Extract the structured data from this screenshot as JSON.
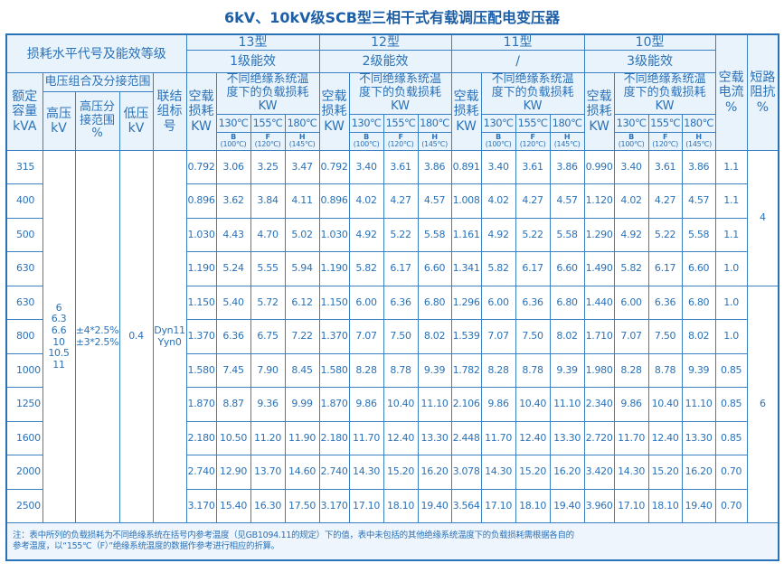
{
  "title": "6kV、10kV级SCB型三相干式有载调压配电变压器",
  "header": {
    "loss_level": "损耗水平代号及能效等级",
    "groups": [
      {
        "type": "13型",
        "grade": "1级能效"
      },
      {
        "type": "12型",
        "grade": "2级能效"
      },
      {
        "type": "11型",
        "grade": "/"
      },
      {
        "type": "10型",
        "grade": "3级能效"
      }
    ],
    "no_load_current": "空载电流%",
    "short_circuit_impedance": "短路阻抗%",
    "rated_capacity": "额定容量kVA",
    "voltage_combo": "电压组合及分接范围",
    "hv": "高压kV",
    "tap_range": "高压分接范围%",
    "lv": "低压kV",
    "vector_group": "联结组标号",
    "no_load_loss": "空载损耗KW",
    "load_loss": "不同绝缘系统温度下的负载损耗KW",
    "temps": [
      {
        "t": "130℃",
        "cls": "B",
        "ref": "(100℃)"
      },
      {
        "t": "155℃",
        "cls": "F",
        "ref": "(120℃)"
      },
      {
        "t": "180℃",
        "cls": "H",
        "ref": "(145℃)"
      }
    ]
  },
  "merged": {
    "hv_values": "6\n6.3\n6.6\n10\n10.5\n11",
    "tap_values": "±4*2.5%\n±3*2.5%",
    "lv_value": "0.4",
    "vector_values": "Dyn11\nYyn0",
    "impedance": [
      {
        "value": "4",
        "rows": 4
      },
      {
        "value": "6",
        "rows": 7
      }
    ]
  },
  "rows": [
    {
      "cap": "315",
      "g": [
        [
          "0.792",
          "3.06",
          "3.25",
          "3.47"
        ],
        [
          "0.792",
          "3.40",
          "3.61",
          "3.86"
        ],
        [
          "0.891",
          "3.40",
          "3.61",
          "3.86"
        ],
        [
          "0.990",
          "3.40",
          "3.61",
          "3.86"
        ]
      ],
      "i0": "1.1"
    },
    {
      "cap": "400",
      "g": [
        [
          "0.896",
          "3.62",
          "3.84",
          "4.11"
        ],
        [
          "0.896",
          "4.02",
          "4.27",
          "4.57"
        ],
        [
          "1.008",
          "4.02",
          "4.27",
          "4.57"
        ],
        [
          "1.120",
          "4.02",
          "4.27",
          "4.57"
        ]
      ],
      "i0": "1.1"
    },
    {
      "cap": "500",
      "g": [
        [
          "1.030",
          "4.43",
          "4.70",
          "5.02"
        ],
        [
          "1.030",
          "4.92",
          "5.22",
          "5.58"
        ],
        [
          "1.161",
          "4.92",
          "5.22",
          "5.58"
        ],
        [
          "1.290",
          "4.92",
          "5.22",
          "5.58"
        ]
      ],
      "i0": "1.1"
    },
    {
      "cap": "630",
      "g": [
        [
          "1.190",
          "5.24",
          "5.55",
          "5.94"
        ],
        [
          "1.190",
          "5.82",
          "6.17",
          "6.60"
        ],
        [
          "1.341",
          "5.82",
          "6.17",
          "6.60"
        ],
        [
          "1.490",
          "5.82",
          "6.17",
          "6.60"
        ]
      ],
      "i0": "1.0"
    },
    {
      "cap": "630",
      "g": [
        [
          "1.150",
          "5.40",
          "5.72",
          "6.12"
        ],
        [
          "1.150",
          "6.00",
          "6.36",
          "6.80"
        ],
        [
          "1.296",
          "6.00",
          "6.36",
          "6.80"
        ],
        [
          "1.440",
          "6.00",
          "6.36",
          "6.80"
        ]
      ],
      "i0": "1.0"
    },
    {
      "cap": "800",
      "g": [
        [
          "1.370",
          "6.36",
          "6.75",
          "7.22"
        ],
        [
          "1.370",
          "7.07",
          "7.50",
          "8.02"
        ],
        [
          "1.539",
          "7.07",
          "7.50",
          "8.02"
        ],
        [
          "1.710",
          "7.07",
          "7.50",
          "8.02"
        ]
      ],
      "i0": "1.0"
    },
    {
      "cap": "1000",
      "g": [
        [
          "1.580",
          "7.45",
          "7.90",
          "8.45"
        ],
        [
          "1.580",
          "8.28",
          "8.78",
          "9.39"
        ],
        [
          "1.782",
          "8.28",
          "8.78",
          "9.39"
        ],
        [
          "1.980",
          "8.28",
          "8.78",
          "9.39"
        ]
      ],
      "i0": "0.85"
    },
    {
      "cap": "1250",
      "g": [
        [
          "1.870",
          "8.87",
          "9.36",
          "9.99"
        ],
        [
          "1.870",
          "9.86",
          "10.40",
          "11.10"
        ],
        [
          "2.106",
          "9.86",
          "10.40",
          "11.10"
        ],
        [
          "2.340",
          "9.86",
          "10.40",
          "11.10"
        ]
      ],
      "i0": "0.85"
    },
    {
      "cap": "1600",
      "g": [
        [
          "2.180",
          "10.50",
          "11.20",
          "11.90"
        ],
        [
          "2.180",
          "11.70",
          "12.40",
          "13.30"
        ],
        [
          "2.448",
          "11.70",
          "12.40",
          "13.30"
        ],
        [
          "2.720",
          "11.70",
          "12.40",
          "13.30"
        ]
      ],
      "i0": "0.85"
    },
    {
      "cap": "2000",
      "g": [
        [
          "2.740",
          "12.90",
          "13.70",
          "14.60"
        ],
        [
          "2.740",
          "14.30",
          "15.20",
          "16.20"
        ],
        [
          "3.078",
          "14.30",
          "15.20",
          "16.20"
        ],
        [
          "3.420",
          "14.30",
          "15.20",
          "16.20"
        ]
      ],
      "i0": "0.70"
    },
    {
      "cap": "2500",
      "g": [
        [
          "3.170",
          "15.40",
          "16.30",
          "17.50"
        ],
        [
          "3.170",
          "17.10",
          "18.10",
          "19.40"
        ],
        [
          "3.564",
          "17.10",
          "18.10",
          "19.40"
        ],
        [
          "3.960",
          "17.10",
          "18.10",
          "19.40"
        ]
      ],
      "i0": "0.70"
    }
  ],
  "note": "注：表中所列的负载损耗为不同绝缘系统在括号内参考温度（见GB1094.11的规定）下的值，表中未包括的其他绝缘系统温度下的负载损耗需根据各自的\n参考温度，以“155℃（F）”绝缘系统温度的数据作参考进行相应的折算。"
}
